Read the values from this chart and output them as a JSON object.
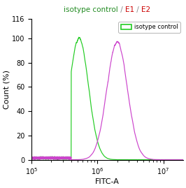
{
  "title_parts": [
    {
      "text": "isotype control",
      "color": "#228B22"
    },
    {
      "text": " / ",
      "color": "#888888"
    },
    {
      "text": "E1",
      "color": "#cc0000"
    },
    {
      "text": " / ",
      "color": "#888888"
    },
    {
      "text": "E2",
      "color": "#cc0000"
    }
  ],
  "xlabel": "FITC-A",
  "ylabel": "Count (%)",
  "ylim": [
    0,
    116
  ],
  "xlim_log": [
    5.0,
    7.3
  ],
  "xticks_log": [
    5,
    6,
    7
  ],
  "xtick_labels": [
    "10⁵",
    "10⁶",
    "10⁷"
  ],
  "yticks": [
    0,
    20,
    40,
    60,
    80,
    100
  ],
  "ytick_top": 116,
  "green_peak_log": 5.72,
  "green_peak_height": 100,
  "pink_peak_log": 6.3,
  "pink_peak_height": 97,
  "green_color": "#22cc22",
  "pink_color": "#cc44cc",
  "background_color": "#ffffff",
  "legend_label": "isotype control",
  "title_fontsize": 7.5,
  "axis_fontsize": 8,
  "tick_fontsize": 7
}
